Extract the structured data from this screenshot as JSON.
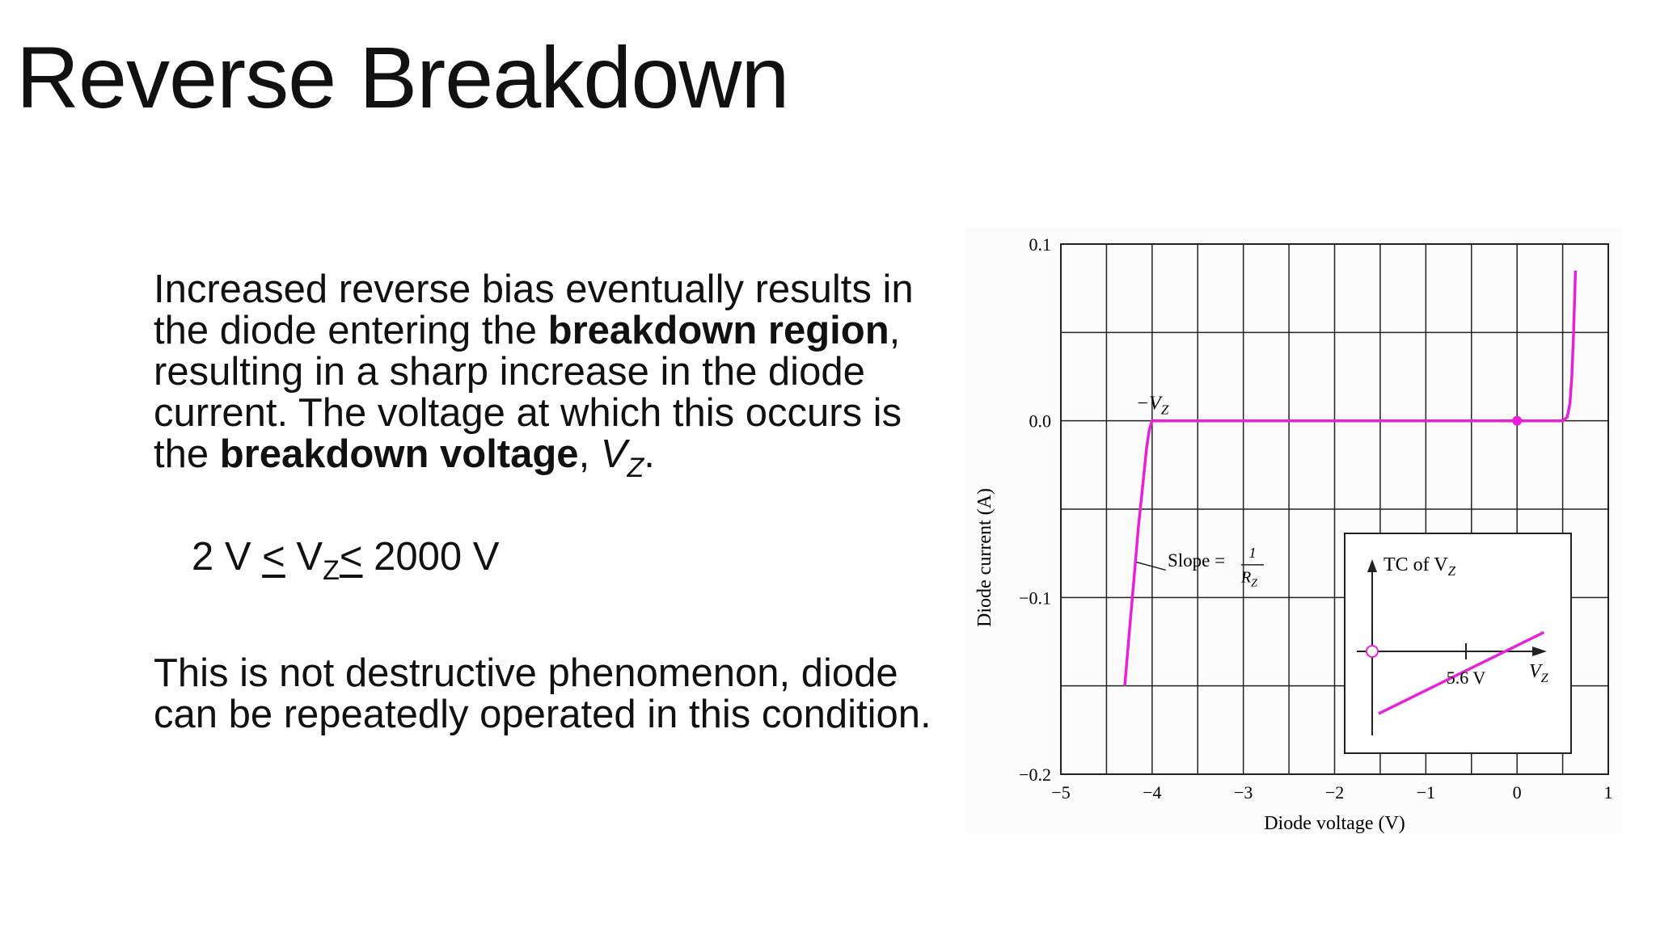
{
  "slide": {
    "title": "Reverse Breakdown",
    "para1": {
      "t1": "Increased reverse bias eventually results in the diode entering the ",
      "b1": "breakdown region",
      "t2": ", resulting in a sharp increase in the diode current.  The voltage at which this occurs is the ",
      "b2": "breakdown voltage",
      "t3": ", ",
      "vz_v": "V",
      "vz_sub": "Z",
      "t4": "."
    },
    "inequality": {
      "left": "2 V ",
      "le1": "<",
      "v": " V",
      "sub": "Z",
      "le2": "<",
      "right": " 2000 V"
    },
    "para3": "This is not destructive phenomenon, diode can be repeatedly operated in this condition."
  },
  "chart_data": {
    "type": "line",
    "xlabel": "Diode voltage (V)",
    "ylabel": "Diode current (A)",
    "xlim": [
      -5,
      1
    ],
    "ylim": [
      -0.2,
      0.1
    ],
    "x_ticks": [
      -5,
      -4,
      -3,
      -2,
      -1,
      0,
      1
    ],
    "x_tick_labels": [
      "−5",
      "−4",
      "−3",
      "−2",
      "−1",
      "0",
      "1"
    ],
    "y_ticks": [
      0.1,
      0.0,
      -0.1,
      -0.2
    ],
    "y_tick_labels": [
      "0.1",
      "0.0",
      "−0.1",
      "−0.2"
    ],
    "grid": true,
    "line_color": "#e820d8",
    "series": [
      {
        "x": [
          -4.3,
          -4.25,
          -4.2,
          -4.15,
          -4.1,
          -4.06,
          -4.03,
          -4.0,
          -3.5,
          -2.0,
          0.0,
          0.5,
          0.55,
          0.58,
          0.6,
          0.62,
          0.64
        ],
        "y": [
          -0.15,
          -0.12,
          -0.09,
          -0.06,
          -0.035,
          -0.015,
          -0.005,
          0.0,
          0.0,
          0.0,
          0.0,
          0.0,
          0.002,
          0.01,
          0.025,
          0.05,
          0.085
        ]
      }
    ],
    "marker_point": {
      "x": 0,
      "y": 0
    },
    "annotations": {
      "neg_vz": "−V",
      "neg_vz_sub": "Z",
      "slope_text": "Slope =",
      "slope_num": "1",
      "slope_den": "R",
      "slope_den_sub": "Z"
    },
    "inset": {
      "title": "TC of V",
      "title_sub": "Z",
      "xlabel": "V",
      "xlabel_sub": "Z",
      "mark_label": "5.6 V",
      "line_start_rel": [
        0.15,
        0.82
      ],
      "line_end_rel": [
        0.88,
        0.45
      ]
    }
  }
}
